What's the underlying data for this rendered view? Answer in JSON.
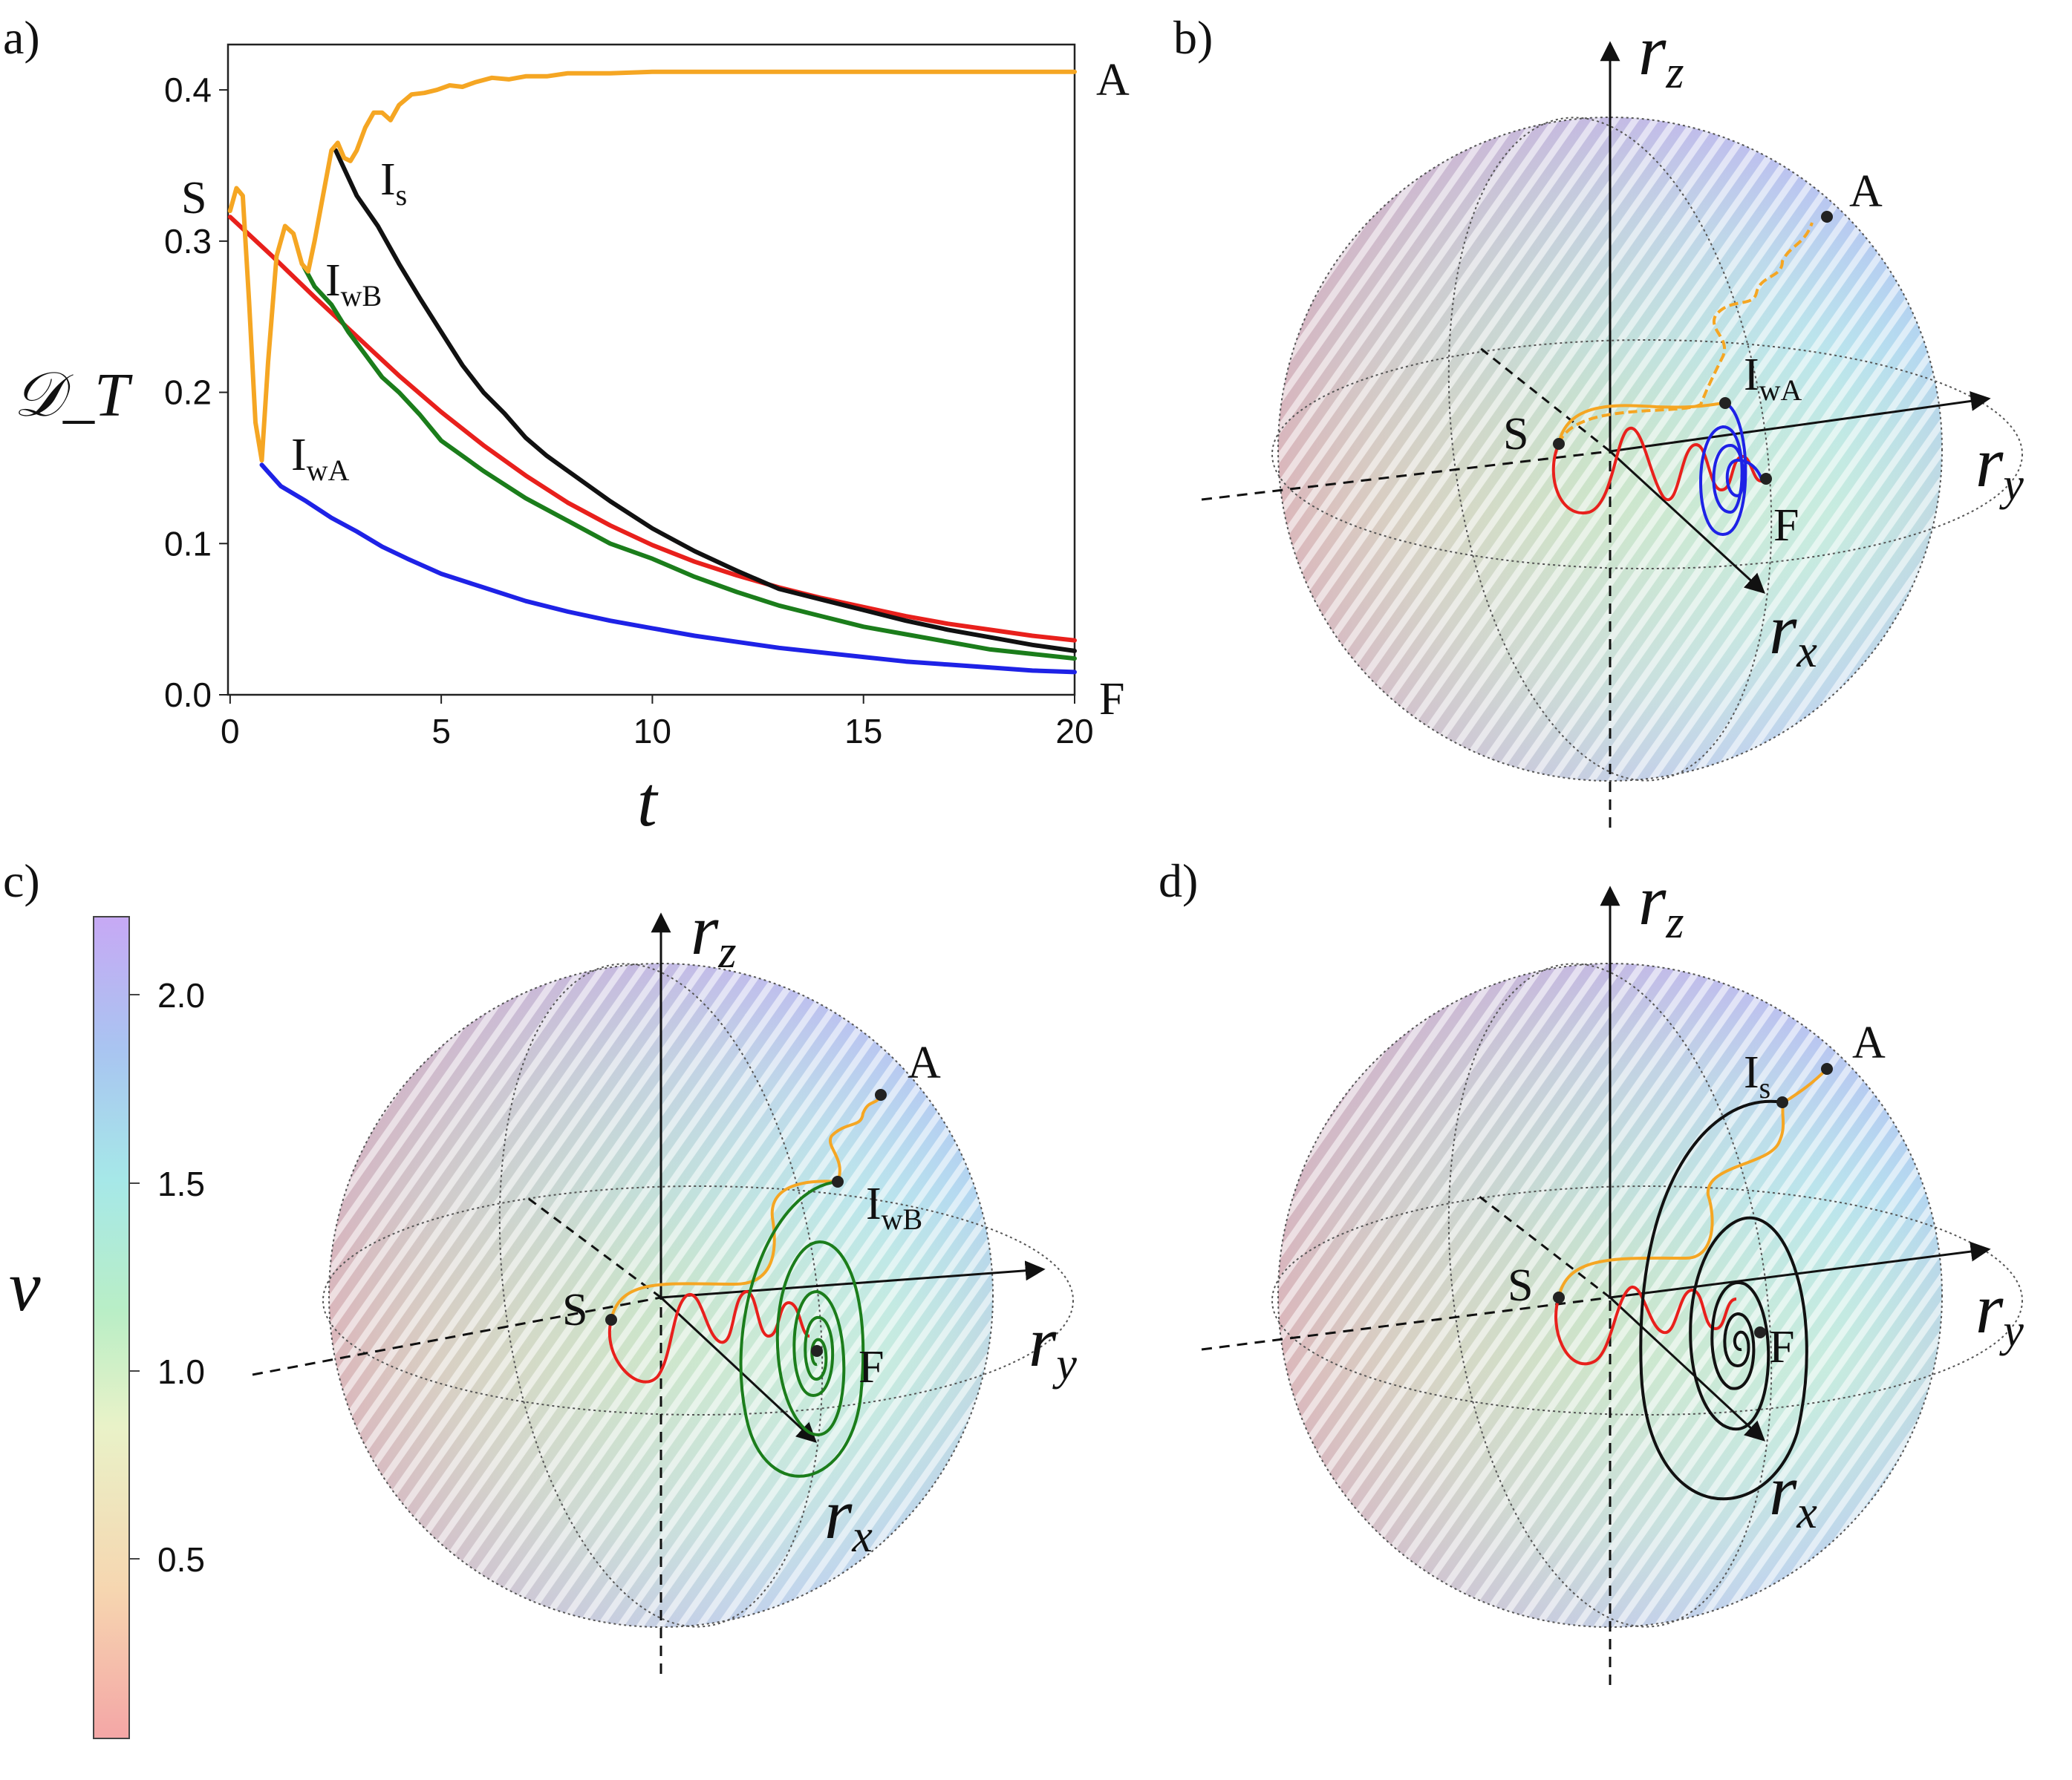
{
  "panels": {
    "a": "a)",
    "b": "b)",
    "c": "c)",
    "d": "d)"
  },
  "chart_data": [
    {
      "type": "line",
      "panel": "a)",
      "xlabel": "t",
      "ylabel": "𝒟_T",
      "xlim": [
        0,
        20
      ],
      "ylim": [
        0,
        0.43
      ],
      "xticks": [
        "0",
        "5",
        "10",
        "15",
        "20"
      ],
      "yticks": [
        "0.0",
        "0.1",
        "0.2",
        "0.3",
        "0.4"
      ],
      "series": [
        {
          "name": "orange",
          "color": "#f5a623",
          "x": [
            0,
            0.15,
            0.3,
            0.45,
            0.6,
            0.75,
            0.9,
            1.1,
            1.3,
            1.5,
            1.7,
            1.85,
            2.0,
            2.2,
            2.4,
            2.55,
            2.7,
            2.85,
            3.0,
            3.2,
            3.4,
            3.6,
            3.8,
            4.0,
            4.3,
            4.6,
            4.9,
            5.2,
            5.5,
            5.8,
            6.2,
            6.6,
            7.0,
            7.5,
            8.0,
            9,
            10,
            12,
            14,
            16,
            18,
            20
          ],
          "y": [
            0.32,
            0.335,
            0.33,
            0.26,
            0.18,
            0.155,
            0.22,
            0.29,
            0.31,
            0.305,
            0.285,
            0.28,
            0.3,
            0.33,
            0.36,
            0.365,
            0.355,
            0.353,
            0.36,
            0.375,
            0.385,
            0.385,
            0.38,
            0.39,
            0.397,
            0.398,
            0.4,
            0.403,
            0.402,
            0.405,
            0.408,
            0.407,
            0.409,
            0.409,
            0.411,
            0.411,
            0.412,
            0.412,
            0.412,
            0.412,
            0.412,
            0.412
          ]
        },
        {
          "name": "red",
          "color": "#e8201c",
          "x": [
            0,
            1,
            2,
            3,
            4,
            5,
            6,
            7,
            8,
            9,
            10,
            11,
            12,
            13,
            14,
            15,
            16,
            17,
            18,
            19,
            20
          ],
          "y": [
            0.316,
            0.29,
            0.263,
            0.237,
            0.211,
            0.187,
            0.165,
            0.145,
            0.127,
            0.112,
            0.099,
            0.088,
            0.079,
            0.071,
            0.064,
            0.058,
            0.052,
            0.047,
            0.043,
            0.039,
            0.036
          ]
        },
        {
          "name": "blue",
          "color": "#1e22e6",
          "x": [
            0.75,
            1.2,
            1.8,
            2.4,
            3.0,
            3.6,
            4.2,
            5,
            6,
            7,
            8,
            9,
            10,
            11,
            12,
            13,
            14,
            15,
            16,
            17,
            18,
            19,
            20
          ],
          "y": [
            0.152,
            0.138,
            0.128,
            0.117,
            0.108,
            0.098,
            0.09,
            0.08,
            0.071,
            0.062,
            0.055,
            0.049,
            0.044,
            0.039,
            0.035,
            0.031,
            0.028,
            0.025,
            0.022,
            0.02,
            0.018,
            0.016,
            0.015
          ]
        },
        {
          "name": "green",
          "color": "#1b7d1b",
          "x": [
            1.75,
            2.0,
            2.4,
            2.8,
            3.2,
            3.6,
            4.0,
            4.5,
            5,
            5.5,
            6,
            7,
            8,
            9,
            10,
            11,
            12,
            13,
            14,
            15,
            16,
            17,
            18,
            19,
            20
          ],
          "y": [
            0.283,
            0.27,
            0.258,
            0.24,
            0.225,
            0.21,
            0.2,
            0.185,
            0.168,
            0.158,
            0.148,
            0.13,
            0.115,
            0.1,
            0.09,
            0.078,
            0.068,
            0.059,
            0.052,
            0.045,
            0.04,
            0.035,
            0.03,
            0.027,
            0.024
          ]
        },
        {
          "name": "black",
          "color": "#111111",
          "x": [
            2.5,
            3.0,
            3.5,
            4.0,
            4.5,
            5.0,
            5.5,
            6.0,
            6.5,
            7.0,
            7.5,
            8.0,
            9,
            10,
            11,
            12,
            13,
            14,
            15,
            16,
            17,
            18,
            19,
            20
          ],
          "y": [
            0.36,
            0.33,
            0.31,
            0.285,
            0.262,
            0.24,
            0.218,
            0.2,
            0.186,
            0.17,
            0.158,
            0.148,
            0.128,
            0.11,
            0.095,
            0.082,
            0.07,
            0.063,
            0.056,
            0.049,
            0.043,
            0.038,
            0.033,
            0.029
          ]
        }
      ],
      "annotations": [
        {
          "text": "A",
          "sub": ""
        },
        {
          "text": "S",
          "sub": ""
        },
        {
          "text": "I",
          "sub": "s"
        },
        {
          "text": "I",
          "sub": "wB"
        },
        {
          "text": "I",
          "sub": "wA"
        },
        {
          "text": "F",
          "sub": ""
        }
      ]
    },
    {
      "type": "scatter",
      "panel": "b)",
      "description_axes": [
        "r_x",
        "r_y",
        "r_z"
      ],
      "points": [
        "S",
        "I_wA",
        "A",
        "F"
      ],
      "trajectories": [
        "red",
        "orange",
        "blue"
      ]
    },
    {
      "type": "scatter",
      "panel": "c)",
      "points": [
        "S",
        "I_wB",
        "A",
        "F"
      ],
      "trajectories": [
        "red",
        "orange",
        "green"
      ]
    },
    {
      "type": "scatter",
      "panel": "d)",
      "points": [
        "S",
        "I_s",
        "A",
        "F"
      ],
      "trajectories": [
        "red",
        "orange",
        "black"
      ]
    },
    {
      "type": "heatmap",
      "panel": "colorbar",
      "label": "v",
      "ticks": [
        "0.5",
        "1.0",
        "1.5",
        "2.0"
      ],
      "range": [
        0,
        2.2
      ],
      "colors": [
        "#f4a6a6",
        "#f6d6b0",
        "#e9f2c8",
        "#b9eec6",
        "#a6e8e8",
        "#a9c4f1",
        "#c7a9f4"
      ]
    }
  ],
  "sphere_labels": {
    "rx": "r",
    "rx_sub": "x",
    "ry": "r",
    "ry_sub": "y",
    "rz": "r",
    "rz_sub": "z",
    "S": "S",
    "A": "A",
    "F": "F",
    "I": "I",
    "s": "s",
    "wA": "wA",
    "wB": "wB"
  }
}
